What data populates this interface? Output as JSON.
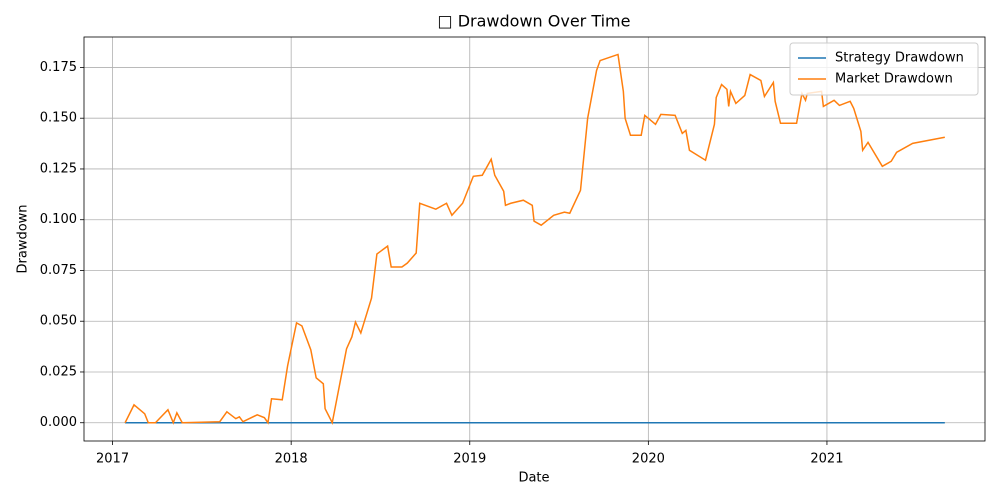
{
  "chart_data": {
    "type": "line",
    "title": "□ Drawdown Over Time",
    "x_label": "Date",
    "y_label": "Drawdown",
    "xlim": [
      2016.84,
      2021.885
    ],
    "xticks": [
      2017,
      2018,
      2019,
      2020,
      2021
    ],
    "ylim": [
      -0.009,
      0.19
    ],
    "yticks": [
      {
        "value": 0,
        "label": "0.000"
      },
      0.025,
      {
        "value": 0.05,
        "label": "0.050"
      },
      0.075,
      {
        "value": 0.1,
        "label": "0.100"
      },
      0.125,
      {
        "value": 0.15,
        "label": "0.150"
      },
      0.175
    ],
    "grid": true,
    "legend": "upper right",
    "series": [
      {
        "name": "Strategy Drawdown",
        "color": "#1f77b4",
        "x": [
          2017.07,
          2021.66
        ],
        "values": [
          0,
          0
        ]
      },
      {
        "name": "Market Drawdown",
        "color": "#ff7f0e",
        "x": [
          2017.07,
          2017.12,
          2017.18,
          2017.2,
          2017.24,
          2017.31,
          2017.34,
          2017.36,
          2017.39,
          2017.6,
          2017.64,
          2017.69,
          2017.71,
          2017.73,
          2017.81,
          2017.85,
          2017.87,
          2017.89,
          2017.95,
          2017.98,
          2018.03,
          2018.06,
          2018.11,
          2018.14,
          2018.18,
          2018.19,
          2018.23,
          2018.31,
          2018.34,
          2018.36,
          2018.39,
          2018.45,
          2018.48,
          2018.54,
          2018.56,
          2018.62,
          2018.65,
          2018.7,
          2018.72,
          2018.81,
          2018.87,
          2018.9,
          2018.96,
          2019.02,
          2019.07,
          2019.12,
          2019.14,
          2019.19,
          2019.2,
          2019.23,
          2019.3,
          2019.35,
          2019.36,
          2019.4,
          2019.47,
          2019.53,
          2019.56,
          2019.62,
          2019.66,
          2019.71,
          2019.73,
          2019.83,
          2019.86,
          2019.87,
          2019.9,
          2019.96,
          2019.98,
          2020.04,
          2020.07,
          2020.15,
          2020.19,
          2020.21,
          2020.23,
          2020.32,
          2020.37,
          2020.38,
          2020.41,
          2020.44,
          2020.45,
          2020.46,
          2020.49,
          2020.54,
          2020.57,
          2020.63,
          2020.65,
          2020.7,
          2020.71,
          2020.74,
          2020.83,
          2020.86,
          2020.88,
          2020.89,
          2020.97,
          2020.98,
          2021.04,
          2021.07,
          2021.13,
          2021.15,
          2021.19,
          2021.2,
          2021.23,
          2021.31,
          2021.36,
          2021.39,
          2021.48,
          2021.66
        ],
        "values": [
          0,
          0.0088,
          0.0044,
          0,
          0,
          0.0064,
          0,
          0.0049,
          0,
          0.0005,
          0.0054,
          0.002,
          0.0029,
          0.0005,
          0.0039,
          0.0025,
          0,
          0.0118,
          0.0113,
          0.028,
          0.0492,
          0.0477,
          0.0359,
          0.0221,
          0.0192,
          0.0069,
          0,
          0.0364,
          0.0423,
          0.0496,
          0.0442,
          0.0614,
          0.0831,
          0.087,
          0.0767,
          0.0767,
          0.0786,
          0.0836,
          0.1081,
          0.1052,
          0.1081,
          0.1022,
          0.1081,
          0.1214,
          0.1219,
          0.1298,
          0.1219,
          0.114,
          0.1071,
          0.1081,
          0.1096,
          0.1071,
          0.0993,
          0.0973,
          0.1022,
          0.1037,
          0.1032,
          0.1145,
          0.1499,
          0.1735,
          0.1784,
          0.1814,
          0.1632,
          0.1499,
          0.1416,
          0.1416,
          0.1514,
          0.147,
          0.1519,
          0.1514,
          0.1425,
          0.144,
          0.1342,
          0.1293,
          0.147,
          0.1602,
          0.1666,
          0.1642,
          0.1558,
          0.1632,
          0.1573,
          0.1612,
          0.1715,
          0.1686,
          0.1607,
          0.1676,
          0.1583,
          0.1475,
          0.1475,
          0.1622,
          0.1588,
          0.1622,
          0.1632,
          0.1558,
          0.1588,
          0.1563,
          0.1583,
          0.1548,
          0.1435,
          0.1342,
          0.1381,
          0.1263,
          0.1288,
          0.1332,
          0.1376,
          0.1406
        ]
      }
    ]
  }
}
